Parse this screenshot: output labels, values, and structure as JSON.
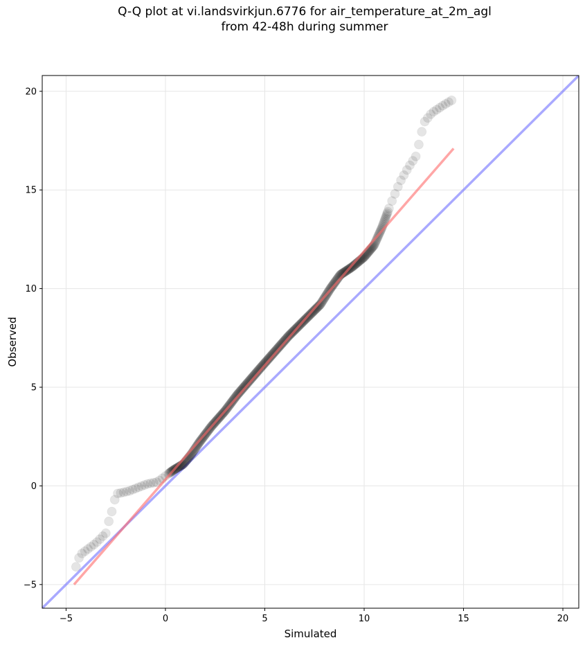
{
  "chart_data": {
    "type": "scatter",
    "title_line1": "Q-Q plot at vi.landsvirkjun.6776 for air_temperature_at_2m_agl",
    "title_line2": "from 42-48h during summer",
    "xlabel": "Simulated",
    "ylabel": "Observed",
    "xlim": [
      -6.2,
      20.8
    ],
    "ylim": [
      -6.2,
      20.8
    ],
    "xticks": [
      -5,
      0,
      5,
      10,
      15,
      20
    ],
    "yticks": [
      -5,
      0,
      5,
      10,
      15,
      20
    ],
    "grid": true,
    "colors": {
      "points": "#000000",
      "fit_line": "#ff6a6a",
      "identity_line": "#7b7bff"
    },
    "fit_line": {
      "x": [
        -4.6,
        14.5
      ],
      "y": [
        -5.0,
        17.1
      ]
    },
    "identity_line": {
      "x": [
        -6.2,
        20.8
      ],
      "y": [
        -6.2,
        20.8
      ]
    },
    "qq_curve": {
      "x": [
        -4.5,
        -4.3,
        -3.9,
        -3.5,
        -3.0,
        -2.8,
        -2.6,
        -2.5,
        -2.2,
        -1.8,
        -1.3,
        -0.9,
        -0.4,
        0.0,
        0.4,
        0.9,
        1.3,
        1.7,
        2.3,
        3.0,
        3.6,
        4.2,
        4.8,
        5.5,
        6.2,
        7.0,
        7.8,
        8.3,
        8.8,
        9.4,
        10.0,
        10.5,
        10.9,
        11.3,
        11.8,
        12.2,
        12.6,
        12.8,
        13.0,
        13.4,
        14.0,
        14.5
      ],
      "y": [
        -4.1,
        -3.5,
        -3.2,
        -2.9,
        -2.4,
        -1.6,
        -1.0,
        -0.4,
        -0.35,
        -0.25,
        -0.05,
        0.1,
        0.2,
        0.5,
        0.8,
        1.1,
        1.6,
        2.2,
        3.0,
        3.8,
        4.6,
        5.3,
        6.0,
        6.8,
        7.6,
        8.4,
        9.2,
        10.0,
        10.7,
        11.1,
        11.6,
        12.2,
        13.1,
        14.2,
        15.4,
        16.1,
        16.7,
        17.5,
        18.4,
        18.9,
        19.3,
        19.6
      ]
    }
  }
}
